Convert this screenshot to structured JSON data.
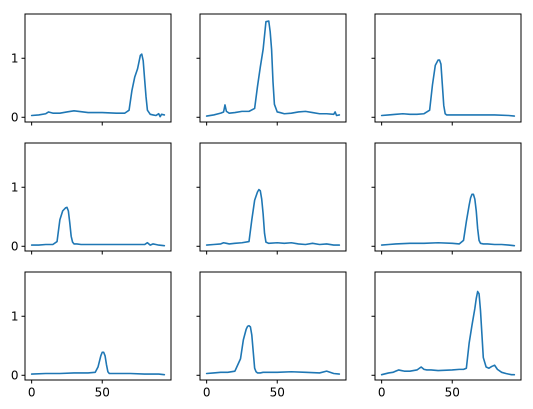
{
  "style": {
    "line_color": "#1f77b4"
  },
  "chart_data": {
    "type": "line",
    "layout": {
      "rows": 3,
      "cols": 3,
      "sharex": true,
      "sharey": true
    },
    "xlim": [
      -4.7,
      98.7
    ],
    "ylim": [
      -0.08,
      1.75
    ],
    "xticks": [
      0,
      50
    ],
    "xtick_labels": [
      "0",
      "50"
    ],
    "yticks": [
      0,
      1
    ],
    "ytick_labels": [
      "0",
      "1"
    ],
    "grid": false,
    "panels": [
      {
        "series": [
          {
            "x": [
              0,
              5,
              10,
              12,
              15,
              20,
              25,
              30,
              40,
              50,
              60,
              66,
              69,
              71,
              73,
              75,
              77,
              78,
              79,
              80,
              81,
              82,
              84,
              86,
              88,
              90,
              91,
              92,
              94
            ],
            "y": [
              0.03,
              0.04,
              0.06,
              0.09,
              0.07,
              0.07,
              0.09,
              0.11,
              0.08,
              0.08,
              0.07,
              0.07,
              0.12,
              0.45,
              0.68,
              0.82,
              1.05,
              1.07,
              0.96,
              0.65,
              0.35,
              0.12,
              0.05,
              0.04,
              0.03,
              0.06,
              0.01,
              0.05,
              0.04
            ]
          }
        ]
      },
      {
        "series": [
          {
            "x": [
              0,
              5,
              10,
              12,
              13,
              14,
              16,
              20,
              25,
              30,
              34,
              36,
              38,
              40,
              42,
              44,
              45,
              46,
              47,
              48,
              50,
              52,
              55,
              60,
              65,
              70,
              75,
              80,
              85,
              90,
              91,
              92,
              94
            ],
            "y": [
              0.02,
              0.04,
              0.07,
              0.09,
              0.21,
              0.1,
              0.07,
              0.08,
              0.1,
              0.1,
              0.15,
              0.52,
              0.85,
              1.15,
              1.62,
              1.63,
              1.45,
              1.15,
              0.6,
              0.22,
              0.09,
              0.08,
              0.06,
              0.07,
              0.09,
              0.1,
              0.08,
              0.06,
              0.06,
              0.05,
              0.09,
              0.03,
              0.04
            ]
          }
        ]
      },
      {
        "series": [
          {
            "x": [
              0,
              5,
              10,
              15,
              20,
              25,
              30,
              34,
              36,
              38,
              40,
              41,
              42,
              43,
              44,
              45,
              46,
              48,
              50,
              60,
              70,
              80,
              90,
              94
            ],
            "y": [
              0.03,
              0.04,
              0.05,
              0.06,
              0.05,
              0.05,
              0.06,
              0.12,
              0.55,
              0.88,
              0.97,
              0.97,
              0.9,
              0.55,
              0.2,
              0.06,
              0.04,
              0.04,
              0.04,
              0.04,
              0.04,
              0.04,
              0.03,
              0.02
            ]
          }
        ]
      },
      {
        "series": [
          {
            "x": [
              0,
              5,
              10,
              15,
              18,
              20,
              22,
              24,
              25,
              26,
              27,
              28,
              29,
              30,
              32,
              35,
              40,
              50,
              60,
              70,
              80,
              82,
              84,
              86,
              88,
              90,
              94
            ],
            "y": [
              0.02,
              0.02,
              0.03,
              0.03,
              0.08,
              0.45,
              0.6,
              0.65,
              0.66,
              0.6,
              0.4,
              0.17,
              0.07,
              0.04,
              0.04,
              0.03,
              0.03,
              0.03,
              0.03,
              0.03,
              0.03,
              0.06,
              0.02,
              0.04,
              0.03,
              0.02,
              0.01
            ]
          }
        ]
      },
      {
        "series": [
          {
            "x": [
              0,
              5,
              10,
              12,
              14,
              16,
              20,
              25,
              30,
              32,
              34,
              36,
              37,
              38,
              39,
              40,
              41,
              42,
              44,
              50,
              55,
              60,
              65,
              70,
              75,
              80,
              85,
              90,
              94
            ],
            "y": [
              0.02,
              0.03,
              0.04,
              0.06,
              0.05,
              0.04,
              0.05,
              0.06,
              0.08,
              0.45,
              0.78,
              0.92,
              0.96,
              0.94,
              0.8,
              0.55,
              0.22,
              0.07,
              0.05,
              0.06,
              0.05,
              0.06,
              0.04,
              0.03,
              0.05,
              0.03,
              0.04,
              0.02,
              0.02
            ]
          }
        ]
      },
      {
        "series": [
          {
            "x": [
              0,
              5,
              10,
              20,
              30,
              40,
              50,
              55,
              58,
              60,
              62,
              63,
              64,
              65,
              66,
              67,
              68,
              69,
              70,
              72,
              75,
              80,
              85,
              90,
              94
            ],
            "y": [
              0.02,
              0.03,
              0.04,
              0.05,
              0.05,
              0.06,
              0.05,
              0.04,
              0.1,
              0.42,
              0.7,
              0.82,
              0.88,
              0.88,
              0.8,
              0.6,
              0.3,
              0.1,
              0.05,
              0.04,
              0.04,
              0.03,
              0.03,
              0.02,
              0.01
            ]
          }
        ]
      },
      {
        "series": [
          {
            "x": [
              0,
              10,
              20,
              30,
              40,
              45,
              47,
              49,
              50,
              51,
              52,
              53,
              54,
              55,
              60,
              70,
              80,
              90,
              94
            ],
            "y": [
              0.02,
              0.03,
              0.03,
              0.04,
              0.04,
              0.05,
              0.14,
              0.33,
              0.39,
              0.39,
              0.33,
              0.18,
              0.06,
              0.03,
              0.03,
              0.03,
              0.02,
              0.02,
              0.01
            ]
          }
        ]
      },
      {
        "series": [
          {
            "x": [
              0,
              5,
              10,
              15,
              20,
              24,
              26,
              28,
              29,
              30,
              31,
              32,
              33,
              34,
              35,
              36,
              38,
              40,
              50,
              60,
              70,
              80,
              85,
              90,
              94
            ],
            "y": [
              0.03,
              0.04,
              0.05,
              0.05,
              0.07,
              0.28,
              0.6,
              0.78,
              0.83,
              0.84,
              0.82,
              0.68,
              0.4,
              0.12,
              0.06,
              0.04,
              0.04,
              0.05,
              0.05,
              0.06,
              0.05,
              0.04,
              0.07,
              0.03,
              0.02
            ]
          }
        ]
      },
      {
        "series": [
          {
            "x": [
              0,
              5,
              8,
              10,
              12,
              14,
              16,
              20,
              25,
              28,
              30,
              32,
              35,
              40,
              50,
              55,
              58,
              60,
              62,
              64,
              66,
              67,
              68,
              69,
              70,
              71,
              72,
              74,
              76,
              78,
              80,
              82,
              85,
              88,
              90,
              92,
              94
            ],
            "y": [
              0.01,
              0.04,
              0.05,
              0.07,
              0.09,
              0.08,
              0.07,
              0.07,
              0.09,
              0.14,
              0.1,
              0.09,
              0.09,
              0.08,
              0.09,
              0.1,
              0.1,
              0.12,
              0.55,
              0.85,
              1.13,
              1.3,
              1.42,
              1.38,
              1.1,
              0.7,
              0.3,
              0.14,
              0.12,
              0.15,
              0.17,
              0.1,
              0.05,
              0.03,
              0.02,
              0.01,
              0.01
            ]
          }
        ]
      }
    ]
  }
}
